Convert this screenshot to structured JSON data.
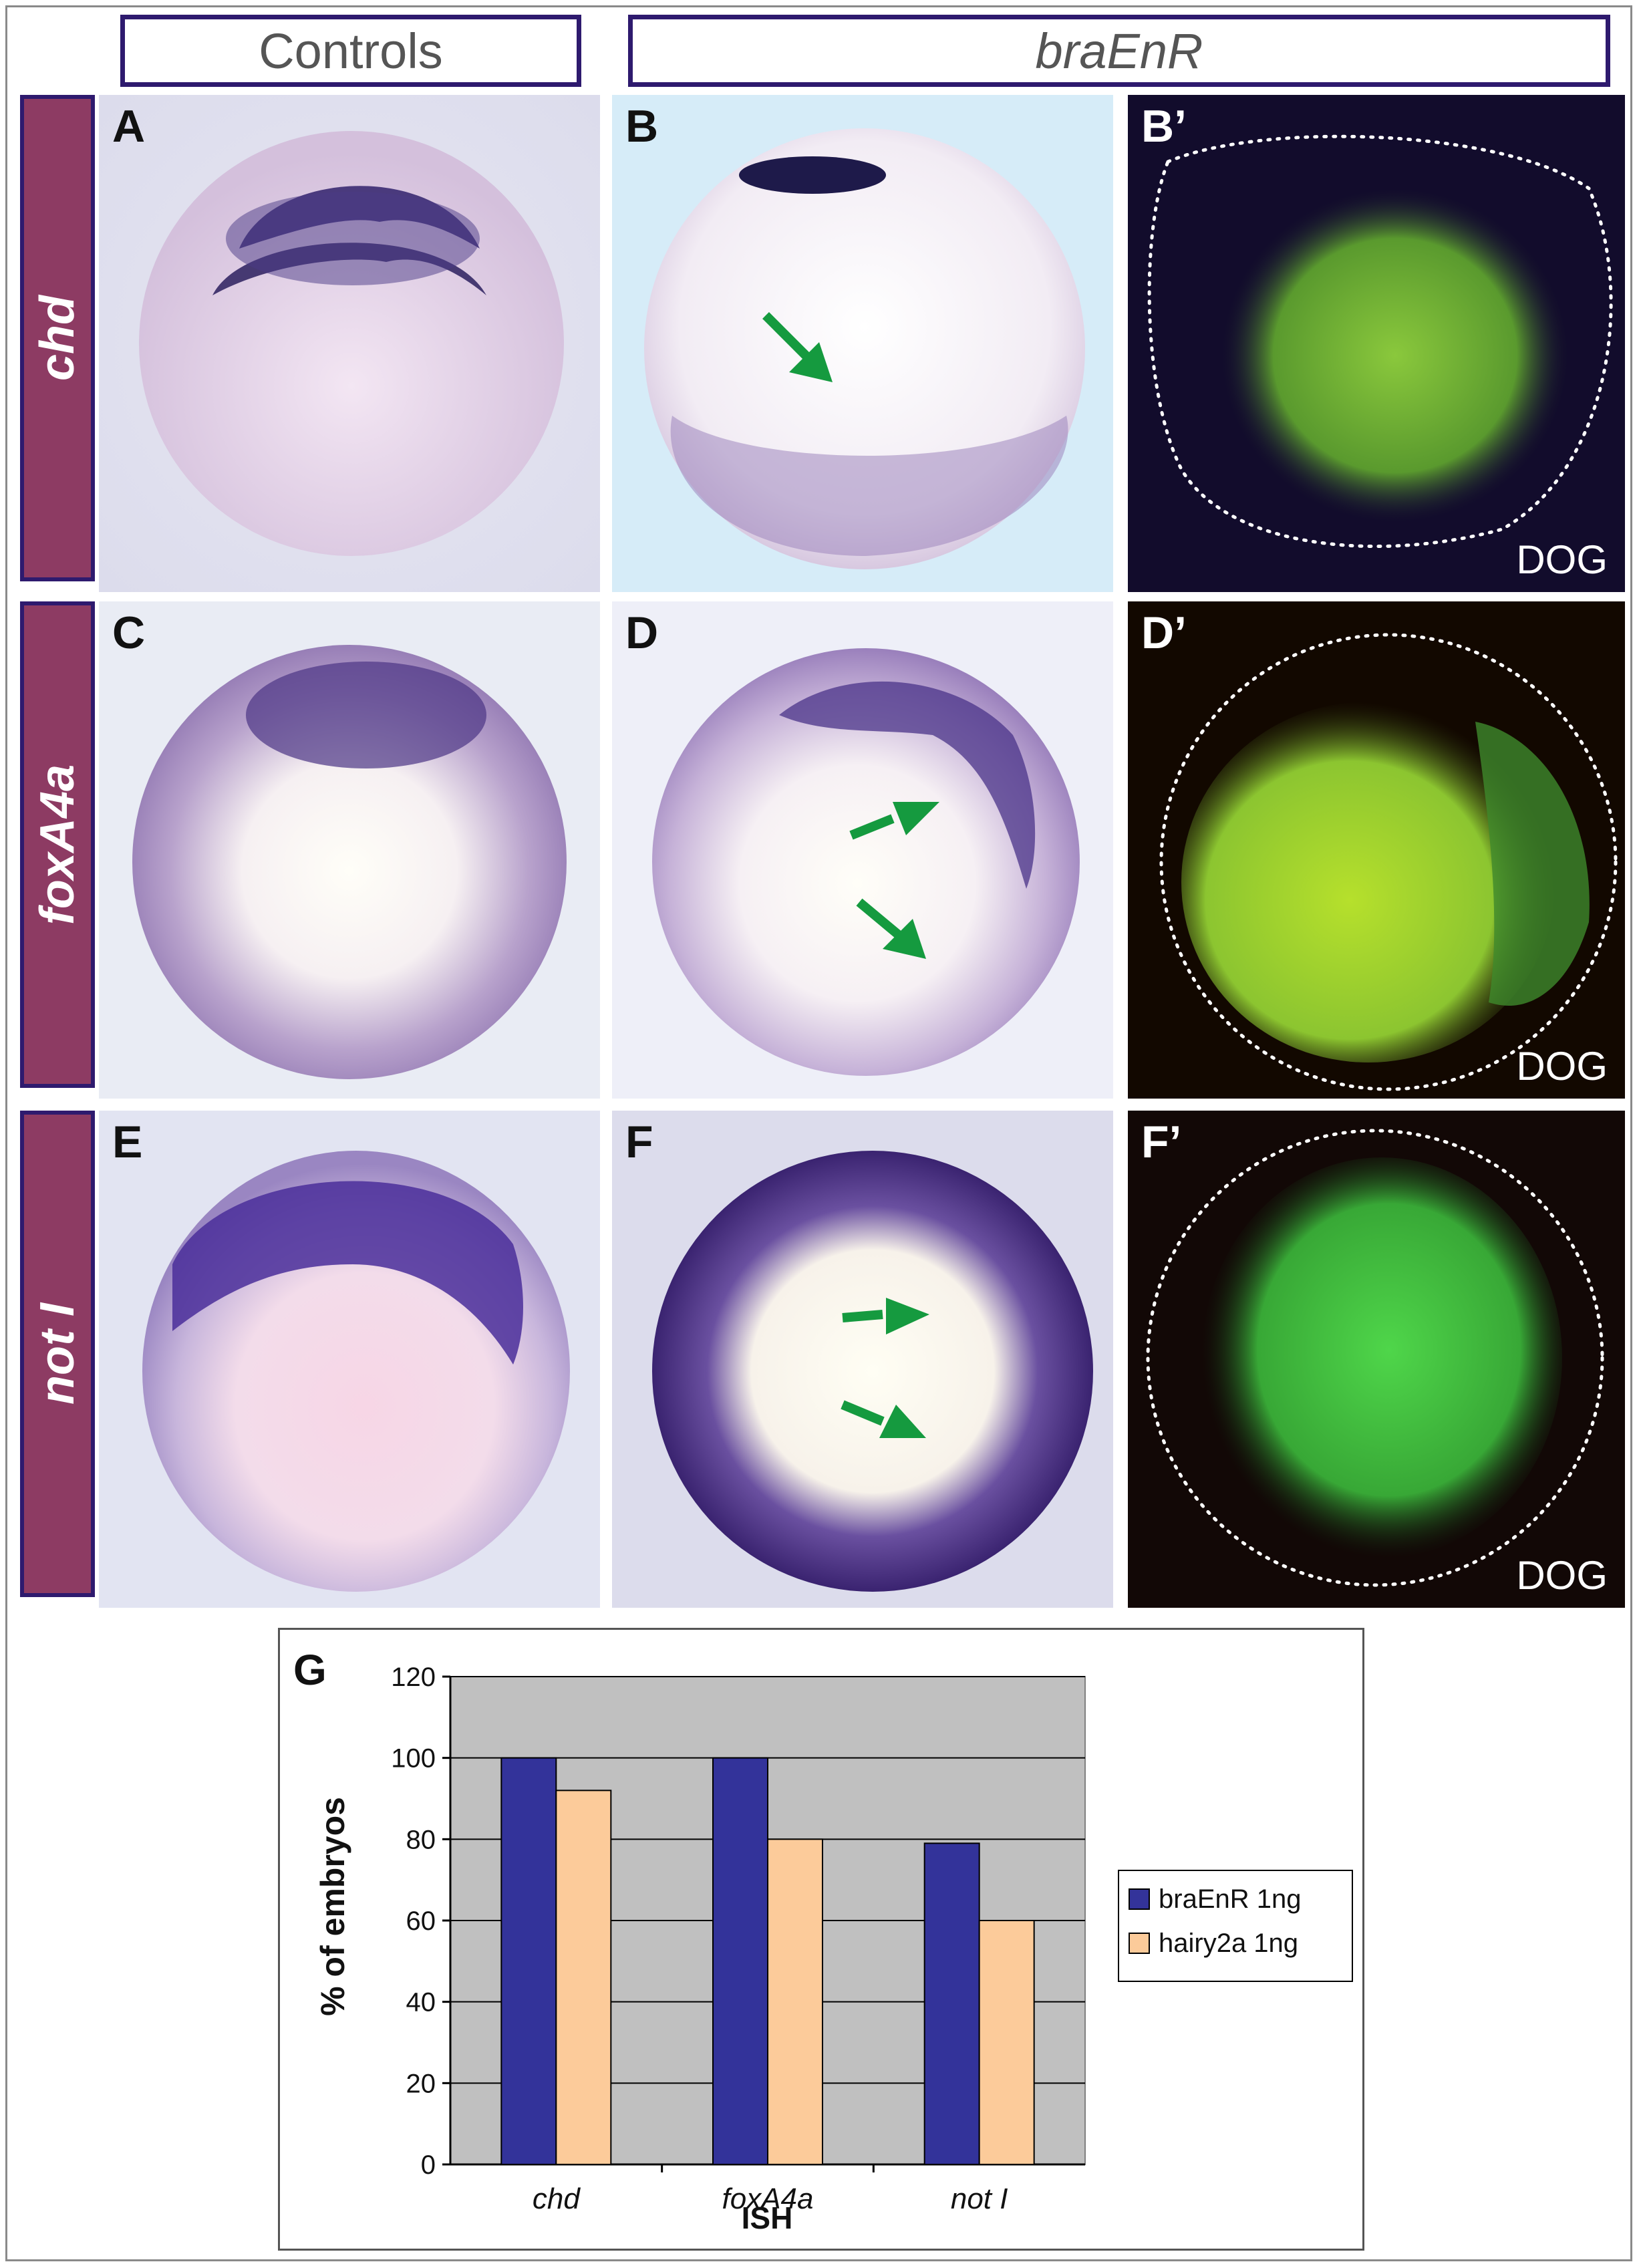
{
  "headers": {
    "controls": "Controls",
    "experiment": "braEnR"
  },
  "row_labels": [
    "chd",
    "foxA4a",
    "not I"
  ],
  "panels": {
    "A": "A",
    "B": "B",
    "B_prime": "B’",
    "C": "C",
    "D": "D",
    "D_prime": "D’",
    "E": "E",
    "F": "F",
    "F_prime": "F’"
  },
  "fluorescence_label": "DOG",
  "colors": {
    "stain": "#4a2f86",
    "arrow": "#159a3f",
    "fluor": "#7fd43a",
    "label_bg": "#8d3b63",
    "border": "#2e1a6e"
  },
  "chart_data": {
    "type": "bar",
    "panel_label": "G",
    "categories": [
      "chd",
      "foxA4a",
      "not I"
    ],
    "series": [
      {
        "name": "braEnR 1ng",
        "values": [
          100,
          100,
          79
        ],
        "color": "#33339a"
      },
      {
        "name": "hairy2a 1ng",
        "values": [
          92,
          80,
          60
        ],
        "color": "#fccb9a"
      }
    ],
    "xlabel": "ISH",
    "ylabel": "% of embryos",
    "ylim": [
      0,
      120
    ],
    "yticks": [
      0,
      20,
      40,
      60,
      80,
      100,
      120
    ],
    "grid": true,
    "plot_background": "#c0c0c0",
    "legend_position": "right"
  }
}
